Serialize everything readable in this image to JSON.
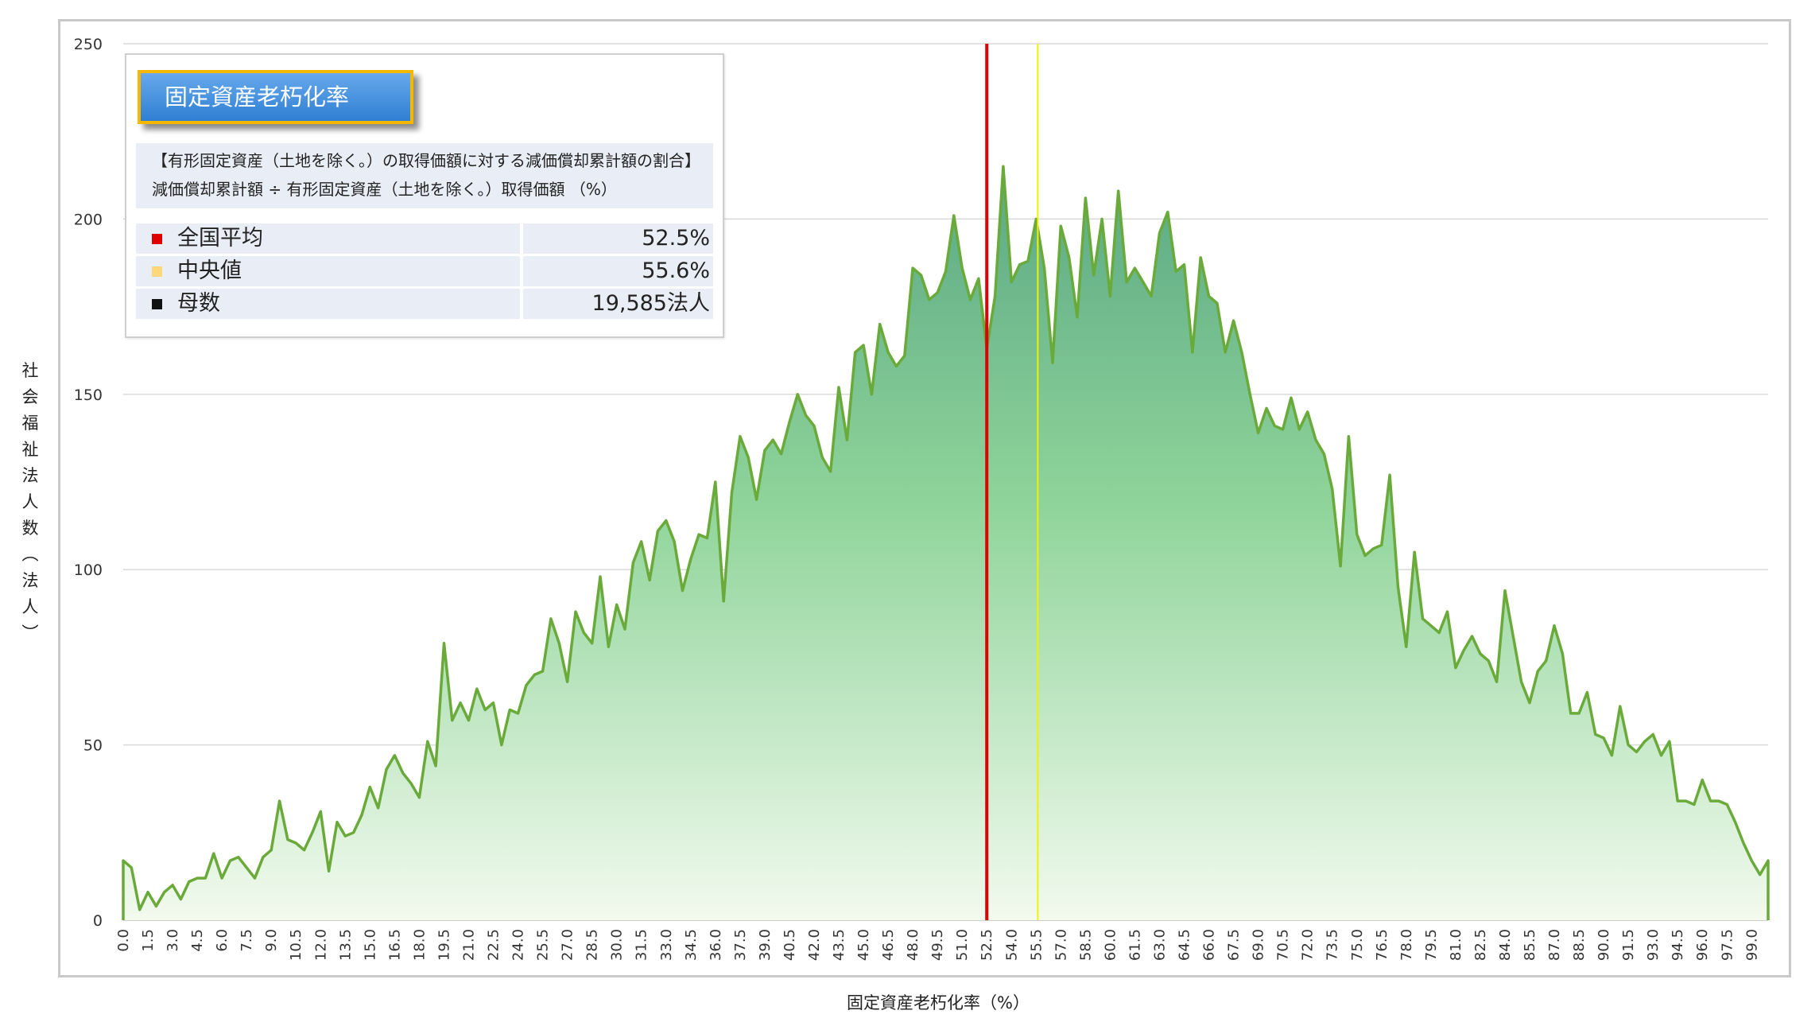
{
  "chart_data": {
    "type": "area",
    "title": "",
    "xlabel": "固定資産老朽化率（%）",
    "ylabel": "社会福祉法人数（法人）",
    "ylim": [
      0,
      250
    ],
    "yticks": [
      0,
      50,
      100,
      150,
      200,
      250
    ],
    "xlim": [
      0,
      100
    ],
    "xtick_labels": [
      "0.0",
      "1.5",
      "3.0",
      "4.5",
      "6.0",
      "7.5",
      "9.0",
      "10.5",
      "12.0",
      "13.5",
      "15.0",
      "16.5",
      "18.0",
      "19.5",
      "21.0",
      "22.5",
      "24.0",
      "25.5",
      "27.0",
      "28.5",
      "30.0",
      "31.5",
      "33.0",
      "34.5",
      "36.0",
      "37.5",
      "39.0",
      "40.5",
      "42.0",
      "43.5",
      "45.0",
      "46.5",
      "48.0",
      "49.5",
      "51.0",
      "52.5",
      "54.0",
      "55.5",
      "57.0",
      "58.5",
      "60.0",
      "61.5",
      "63.0",
      "64.5",
      "66.0",
      "67.5",
      "69.0",
      "70.5",
      "72.0",
      "73.5",
      "75.0",
      "76.5",
      "78.0",
      "79.5",
      "81.0",
      "82.5",
      "84.0",
      "85.5",
      "87.0",
      "88.5",
      "90.0",
      "91.5",
      "93.0",
      "94.5",
      "96.0",
      "97.5",
      "99.0"
    ],
    "grid": "horizontal",
    "colors": {
      "line": "#6aaa3a",
      "fill_top": "#5aa884",
      "fill_bottom": "#eaf6e2",
      "mean": "#e00000",
      "median": "#f2f200"
    },
    "series": [
      {
        "x_start": 0.0,
        "x_step": 0.5,
        "values": [
          17,
          15,
          3,
          8,
          4,
          8,
          10,
          6,
          11,
          12,
          12,
          19,
          12,
          17,
          18,
          15,
          12,
          18,
          20,
          34,
          23,
          22,
          20,
          25,
          31,
          14,
          28,
          24,
          25,
          30,
          38,
          32,
          43,
          47,
          42,
          39,
          35,
          51,
          44,
          79,
          57,
          62,
          57,
          66,
          60,
          62,
          50,
          60,
          59,
          67,
          70,
          71,
          86,
          79,
          68,
          88,
          82,
          79,
          98,
          78,
          90,
          83,
          102,
          108,
          97,
          111,
          114,
          108,
          94,
          103,
          110,
          109,
          125,
          91,
          122,
          138,
          132,
          120,
          134,
          137,
          133,
          142,
          150,
          144,
          141,
          132,
          128,
          152,
          137,
          162,
          164,
          150,
          170,
          162,
          158,
          161,
          186,
          184,
          177,
          179,
          185,
          201,
          186,
          177,
          183,
          163,
          178,
          215,
          182,
          187,
          188,
          200,
          186,
          159,
          198,
          189,
          172,
          206,
          184,
          200,
          178,
          208,
          182,
          186,
          182,
          178,
          196,
          202,
          185,
          187,
          162,
          189,
          178,
          176,
          162,
          171,
          162,
          150,
          139,
          146,
          141,
          140,
          149,
          140,
          145,
          137,
          133,
          123,
          101,
          138,
          110,
          104,
          106,
          107,
          127,
          95,
          78,
          105,
          86,
          84,
          82,
          88,
          72,
          77,
          81,
          76,
          74,
          68,
          94,
          81,
          68,
          62,
          71,
          74,
          84,
          76,
          59,
          59,
          65,
          53,
          52,
          47,
          61,
          50,
          48,
          51,
          53,
          47,
          51,
          34,
          34,
          33,
          40,
          34,
          34,
          33,
          28,
          22,
          17,
          13,
          17
        ]
      }
    ],
    "reference_lines": [
      {
        "name": "全国平均",
        "x": 52.5,
        "color": "#e00000"
      },
      {
        "name": "中央値",
        "x": 55.6,
        "color": "#f2f200"
      }
    ]
  },
  "infobox": {
    "title": "固定資産老朽化率",
    "desc_line1": "【有形固定資産（土地を除く。）の取得価額に対する減価償却累計額の割合】",
    "desc_line2": "減価償却累計額 ÷ 有形固定資産（土地を除く。）取得価額 （%）",
    "rows": [
      {
        "label": "全国平均",
        "value": "52.5%",
        "color": "#e00000"
      },
      {
        "label": "中央値",
        "value": "55.6%",
        "color": "#fcd87a"
      },
      {
        "label": "母数",
        "value": "19,585法人",
        "color": "#111111"
      }
    ]
  }
}
